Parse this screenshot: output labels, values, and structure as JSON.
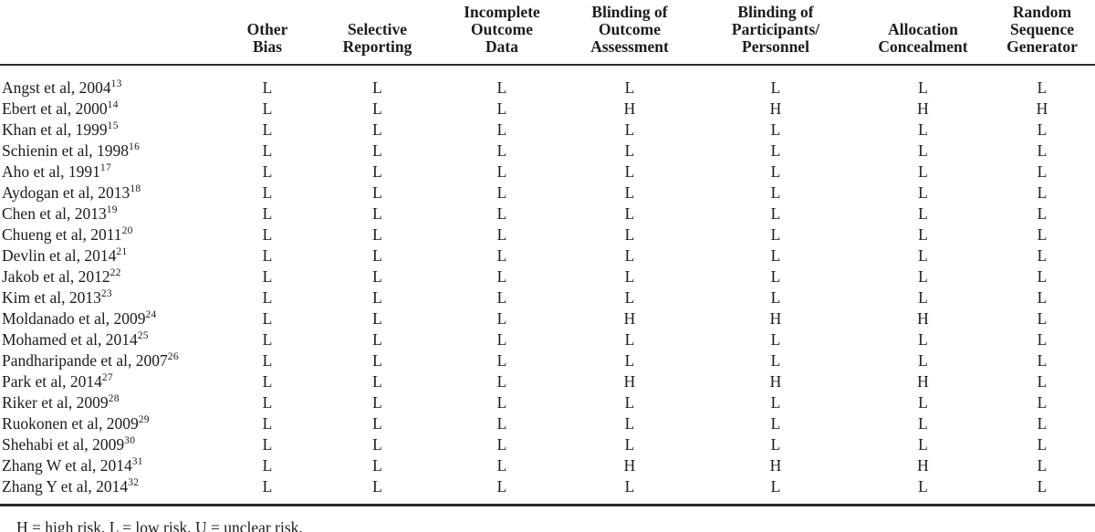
{
  "table": {
    "study_column_header": "",
    "columns": [
      "Other\nBias",
      "Selective\nReporting",
      "Incomplete\nOutcome\nData",
      "Blinding of\nOutcome\nAssessment",
      "Blinding of\nParticipants/\nPersonnel",
      "Allocation\nConcealment",
      "Random\nSequence\nGenerator"
    ],
    "rows": [
      {
        "study": "Angst et al, 2004",
        "ref": "13",
        "values": [
          "L",
          "L",
          "L",
          "L",
          "L",
          "L",
          "L"
        ]
      },
      {
        "study": "Ebert et al, 2000",
        "ref": "14",
        "values": [
          "L",
          "L",
          "L",
          "H",
          "H",
          "H",
          "H"
        ]
      },
      {
        "study": "Khan et al, 1999",
        "ref": "15",
        "values": [
          "L",
          "L",
          "L",
          "L",
          "L",
          "L",
          "L"
        ]
      },
      {
        "study": "Schienin et al, 1998",
        "ref": "16",
        "values": [
          "L",
          "L",
          "L",
          "L",
          "L",
          "L",
          "L"
        ]
      },
      {
        "study": "Aho et al, 1991",
        "ref": "17",
        "values": [
          "L",
          "L",
          "L",
          "L",
          "L",
          "L",
          "L"
        ]
      },
      {
        "study": "Aydogan et al, 2013",
        "ref": "18",
        "values": [
          "L",
          "L",
          "L",
          "L",
          "L",
          "L",
          "L"
        ]
      },
      {
        "study": "Chen et al, 2013",
        "ref": "19",
        "values": [
          "L",
          "L",
          "L",
          "L",
          "L",
          "L",
          "L"
        ]
      },
      {
        "study": "Chueng et al, 2011",
        "ref": "20",
        "values": [
          "L",
          "L",
          "L",
          "L",
          "L",
          "L",
          "L"
        ]
      },
      {
        "study": "Devlin et al, 2014",
        "ref": "21",
        "values": [
          "L",
          "L",
          "L",
          "L",
          "L",
          "L",
          "L"
        ]
      },
      {
        "study": "Jakob et al, 2012",
        "ref": "22",
        "values": [
          "L",
          "L",
          "L",
          "L",
          "L",
          "L",
          "L"
        ]
      },
      {
        "study": "Kim et al, 2013",
        "ref": "23",
        "values": [
          "L",
          "L",
          "L",
          "L",
          "L",
          "L",
          "L"
        ]
      },
      {
        "study": "Moldanado et al, 2009",
        "ref": "24",
        "values": [
          "L",
          "L",
          "L",
          "H",
          "H",
          "H",
          "L"
        ]
      },
      {
        "study": "Mohamed et al, 2014",
        "ref": "25",
        "values": [
          "L",
          "L",
          "L",
          "L",
          "L",
          "L",
          "L"
        ]
      },
      {
        "study": "Pandharipande et al, 2007",
        "ref": "26",
        "values": [
          "L",
          "L",
          "L",
          "L",
          "L",
          "L",
          "L"
        ]
      },
      {
        "study": "Park et al, 2014",
        "ref": "27",
        "values": [
          "L",
          "L",
          "L",
          "H",
          "H",
          "H",
          "L"
        ]
      },
      {
        "study": "Riker et al, 2009",
        "ref": "28",
        "values": [
          "L",
          "L",
          "L",
          "L",
          "L",
          "L",
          "L"
        ]
      },
      {
        "study": "Ruokonen et al, 2009",
        "ref": "29",
        "values": [
          "L",
          "L",
          "L",
          "L",
          "L",
          "L",
          "L"
        ]
      },
      {
        "study": "Shehabi et al, 2009",
        "ref": "30",
        "values": [
          "L",
          "L",
          "L",
          "L",
          "L",
          "L",
          "L"
        ]
      },
      {
        "study": "Zhang W et al, 2014",
        "ref": "31",
        "values": [
          "L",
          "L",
          "L",
          "H",
          "H",
          "H",
          "L"
        ]
      },
      {
        "study": "Zhang Y et al, 2014",
        "ref": "32",
        "values": [
          "L",
          "L",
          "L",
          "L",
          "L",
          "L",
          "L"
        ]
      }
    ],
    "footnote": "H = high risk, L = low risk, U = unclear risk."
  },
  "colors": {
    "text": "#1c1c1c",
    "rule": "#2b2b2b",
    "background": "#ffffff"
  }
}
